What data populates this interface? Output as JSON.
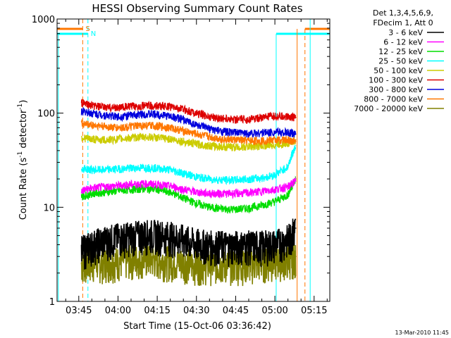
{
  "chart_data": {
    "type": "line",
    "title": "HESSI Observing Summary Count Rates",
    "xlabel": "Start Time (15-Oct-06 03:36:42)",
    "ylabel_main": "Count Rate (s",
    "ylabel_sup1": "-1",
    "ylabel_mid": " detector",
    "ylabel_sup2": "-1",
    "ylabel_end": ")",
    "y_scale": "log",
    "ylim": [
      1,
      1000
    ],
    "xlim_minutes": [
      36.7,
      141.0
    ],
    "x_ticks": [
      {
        "label": "03:45",
        "minutes": 45
      },
      {
        "label": "04:00",
        "minutes": 60
      },
      {
        "label": "04:15",
        "minutes": 75
      },
      {
        "label": "04:30",
        "minutes": 90
      },
      {
        "label": "04:45",
        "minutes": 105
      },
      {
        "label": "05:00",
        "minutes": 120
      },
      {
        "label": "05:15",
        "minutes": 135
      }
    ],
    "y_ticks": [
      {
        "label": "1",
        "value": 1
      },
      {
        "label": "10",
        "value": 10
      },
      {
        "label": "100",
        "value": 100
      },
      {
        "label": "1000",
        "value": 1000
      }
    ],
    "legend_header": [
      "Det 1,3,4,5,6,9,",
      "FDecim 1, Att 0"
    ],
    "legend_placement": "right",
    "timestamp": "13-Mar-2010 11:45",
    "flag_labels": {
      "saa": "S",
      "night": "N"
    },
    "series": [
      {
        "name": "3 - 6 keV",
        "color": "#000000",
        "x": [
          46,
          50,
          55,
          60,
          65,
          70,
          75,
          80,
          85,
          90,
          95,
          100,
          105,
          110,
          115,
          120,
          125,
          128
        ],
        "values": [
          3.5,
          4.0,
          4.5,
          4.8,
          5.0,
          5.2,
          5.2,
          5.0,
          4.6,
          4.2,
          4.0,
          4.0,
          4.0,
          4.0,
          4.0,
          4.1,
          4.6,
          6.0
        ]
      },
      {
        "name": "6 - 12 keV",
        "color": "#ff00ff",
        "x": [
          46,
          50,
          55,
          60,
          65,
          70,
          75,
          80,
          85,
          90,
          95,
          100,
          105,
          110,
          115,
          120,
          125,
          128
        ],
        "values": [
          15,
          16,
          16.5,
          17,
          17.5,
          17.8,
          17.5,
          16.8,
          15.5,
          14.5,
          14.0,
          14.0,
          14.0,
          14.2,
          14.8,
          15.5,
          16.5,
          19
        ]
      },
      {
        "name": "12 - 25 keV",
        "color": "#00dd00",
        "x": [
          46,
          50,
          55,
          60,
          65,
          70,
          75,
          80,
          85,
          90,
          95,
          100,
          105,
          110,
          115,
          120,
          125,
          128
        ],
        "values": [
          13,
          14,
          14.5,
          15,
          15.5,
          15.8,
          15.5,
          14.5,
          12.5,
          11,
          10,
          9.6,
          9.5,
          9.8,
          10.5,
          11.5,
          13.5,
          20
        ]
      },
      {
        "name": "25 - 50 keV",
        "color": "#00ffff",
        "x": [
          46,
          50,
          55,
          60,
          65,
          70,
          75,
          80,
          85,
          90,
          95,
          100,
          105,
          110,
          115,
          120,
          125,
          128
        ],
        "values": [
          26,
          25,
          25,
          25.5,
          26,
          26.5,
          26,
          25,
          23,
          21,
          20,
          19.5,
          19.5,
          20,
          20.5,
          22,
          27,
          45
        ]
      },
      {
        "name": "50 - 100 keV",
        "color": "#cccc00",
        "x": [
          46,
          50,
          55,
          60,
          65,
          70,
          75,
          80,
          85,
          90,
          95,
          100,
          105,
          110,
          115,
          120,
          125,
          128
        ],
        "values": [
          55,
          53,
          52,
          53,
          55,
          56,
          55,
          53,
          50,
          47,
          45,
          44,
          43.5,
          44,
          45,
          46,
          48,
          52
        ]
      },
      {
        "name": "100 - 300 keV",
        "color": "#dd0000",
        "x": [
          46,
          50,
          55,
          60,
          65,
          70,
          75,
          80,
          85,
          90,
          95,
          100,
          105,
          110,
          115,
          120,
          125,
          128
        ],
        "values": [
          130,
          120,
          115,
          115,
          118,
          120,
          120,
          117,
          110,
          100,
          92,
          88,
          86,
          86,
          90,
          93,
          92,
          90
        ]
      },
      {
        "name": "300 - 800 keV",
        "color": "#0000dd",
        "x": [
          46,
          50,
          55,
          60,
          65,
          70,
          75,
          80,
          85,
          90,
          95,
          100,
          105,
          110,
          115,
          120,
          125,
          128
        ],
        "values": [
          105,
          100,
          95,
          92,
          95,
          98,
          97,
          93,
          85,
          75,
          68,
          64,
          62,
          61,
          62,
          63,
          62,
          60
        ]
      },
      {
        "name": "800 - 7000 keV",
        "color": "#ff7700",
        "x": [
          46,
          50,
          55,
          60,
          65,
          70,
          75,
          80,
          85,
          90,
          95,
          100,
          105,
          110,
          115,
          120,
          125,
          128
        ],
        "values": [
          78,
          75,
          72,
          70,
          72,
          74,
          73,
          70,
          65,
          60,
          56,
          53,
          52,
          51,
          51,
          52,
          52,
          50
        ]
      },
      {
        "name": "7000 - 20000 keV",
        "color": "#808000",
        "x": [
          46,
          50,
          55,
          60,
          65,
          70,
          75,
          80,
          85,
          90,
          95,
          100,
          105,
          110,
          115,
          120,
          125,
          128
        ],
        "values": [
          2.5,
          2.6,
          2.6,
          2.7,
          2.8,
          2.9,
          2.8,
          2.7,
          2.6,
          2.5,
          2.5,
          2.5,
          2.5,
          2.5,
          2.6,
          2.7,
          2.8,
          3.0
        ]
      }
    ]
  }
}
